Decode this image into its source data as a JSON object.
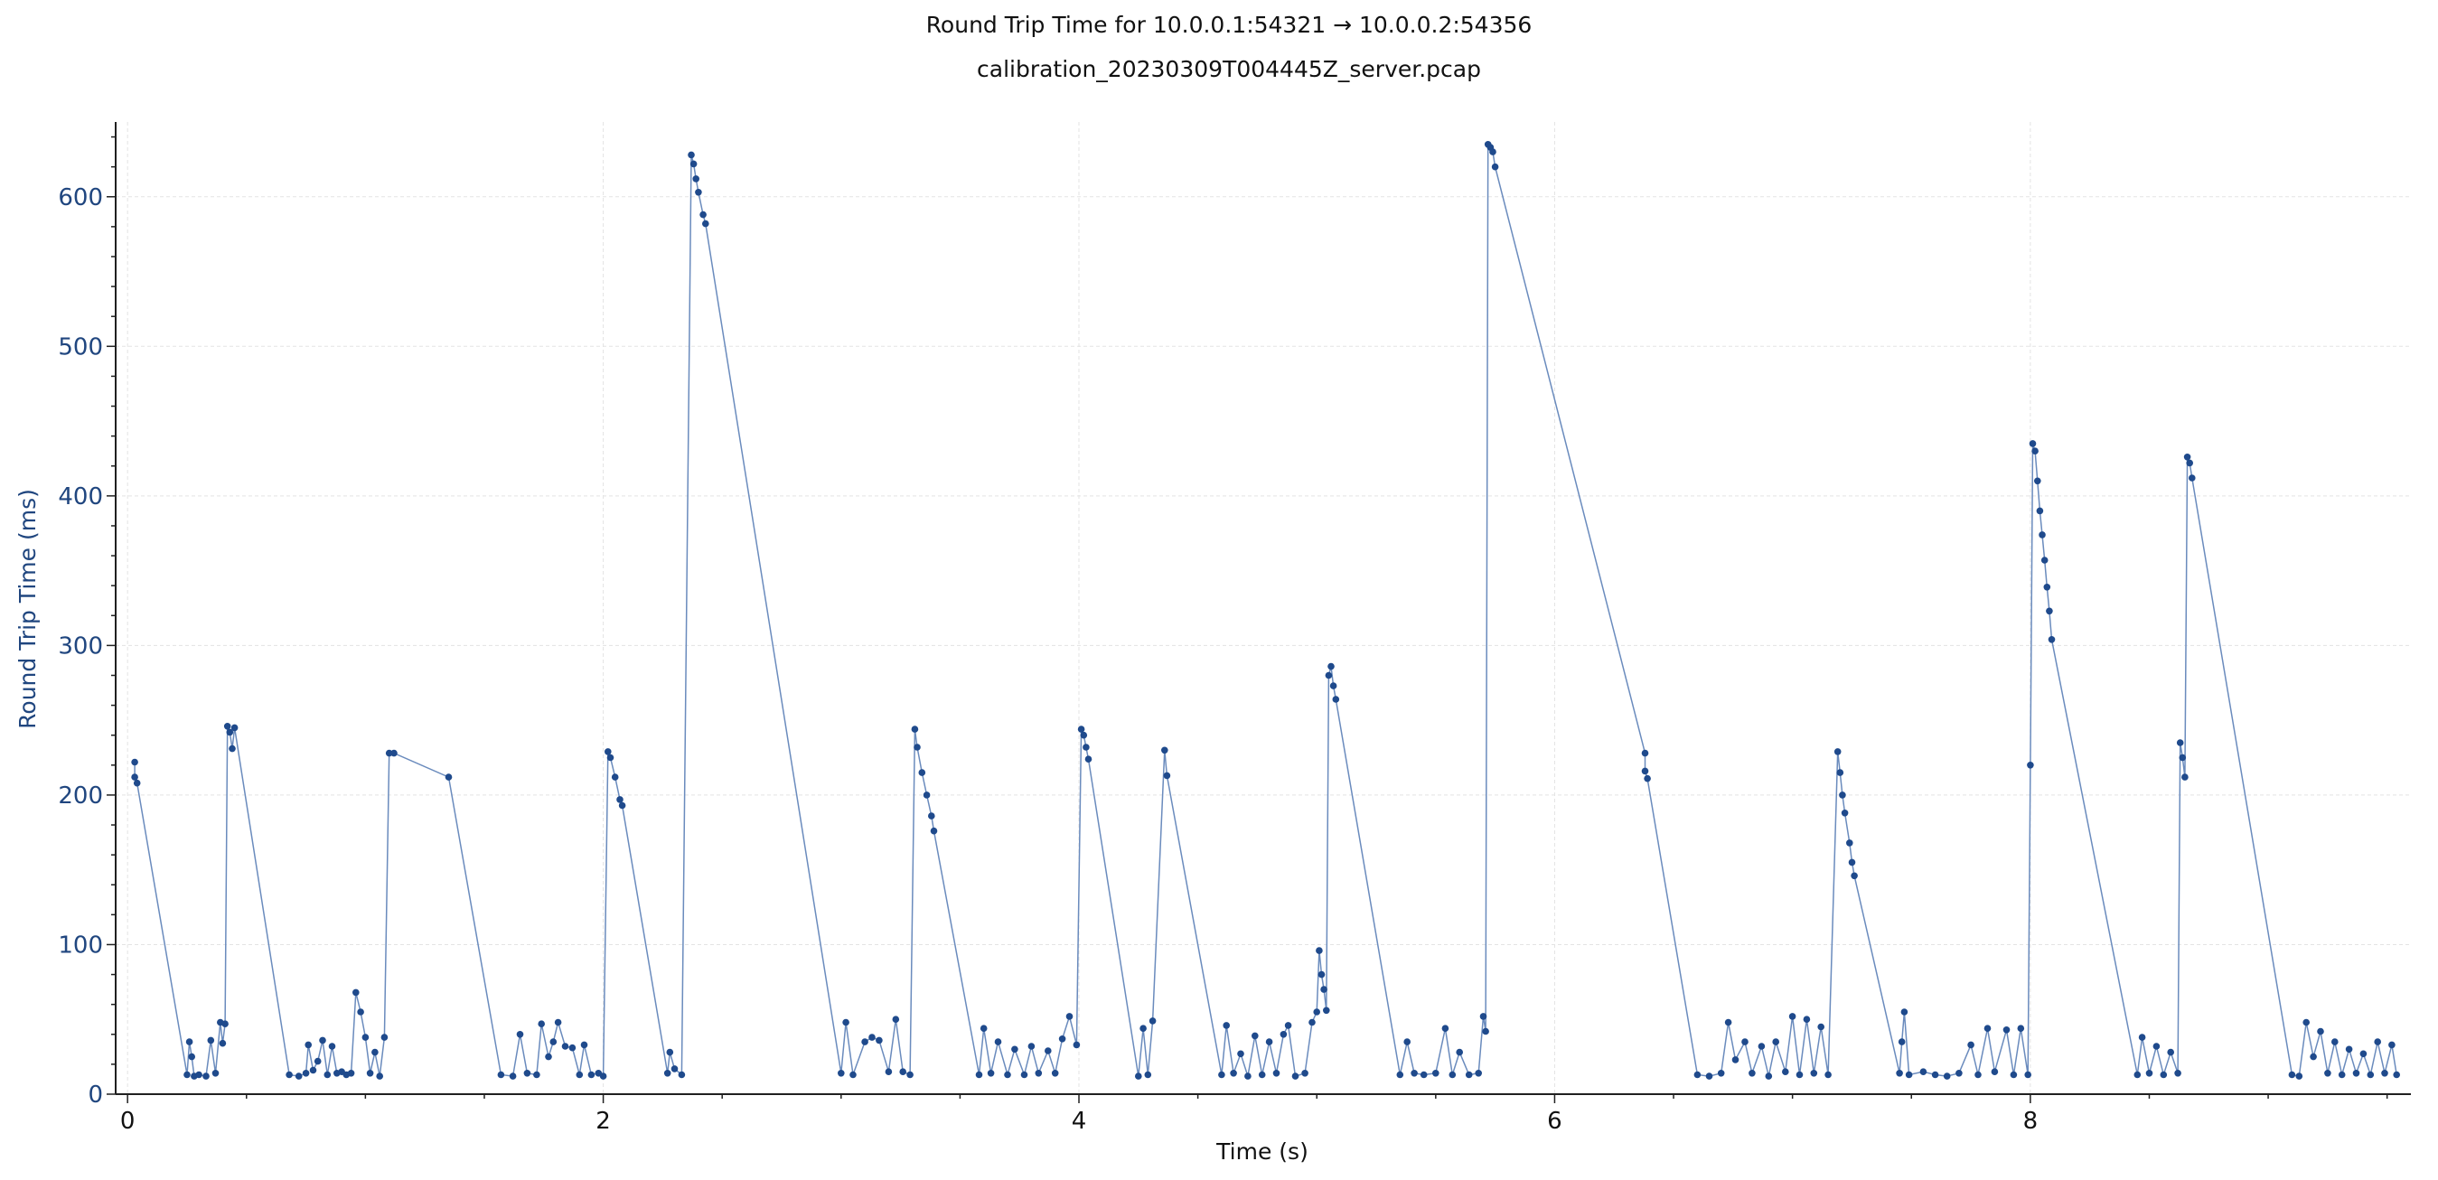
{
  "window": {
    "title": "Round Trip Time for 10.0.0.1:54321 → 10.0.0.2:54356",
    "subtitle": "calibration_20230309T004445Z_server.pcap"
  },
  "colors": {
    "series": "#1f4a8c",
    "line": "#6a8bbd",
    "grid": "#e3e3e3",
    "axis": "#202020",
    "ytick_text": "#20467f"
  },
  "chart_data": {
    "type": "scatter",
    "title": "Round Trip Time for 10.0.0.1:54321 → 10.0.0.2:54356",
    "subtitle": "calibration_20230309T004445Z_server.pcap",
    "xlabel": "Time (s)",
    "ylabel": "Round Trip Time (ms)",
    "xlim": [
      -0.05,
      9.6
    ],
    "ylim": [
      0,
      650
    ],
    "xticks": [
      0,
      2,
      4,
      6,
      8
    ],
    "yticks": [
      0,
      100,
      200,
      300,
      400,
      500,
      600
    ],
    "grid": true,
    "connected": true,
    "series": [
      {
        "points": [
          [
            0.03,
            222
          ],
          [
            0.03,
            212
          ],
          [
            0.04,
            208
          ],
          [
            0.25,
            13
          ],
          [
            0.26,
            35
          ],
          [
            0.27,
            25
          ],
          [
            0.28,
            12
          ],
          [
            0.3,
            13
          ],
          [
            0.33,
            12
          ],
          [
            0.35,
            36
          ],
          [
            0.37,
            14
          ],
          [
            0.39,
            48
          ],
          [
            0.4,
            34
          ],
          [
            0.41,
            47
          ],
          [
            0.42,
            246
          ],
          [
            0.43,
            242
          ],
          [
            0.44,
            231
          ],
          [
            0.45,
            245
          ],
          [
            0.68,
            13
          ],
          [
            0.72,
            12
          ],
          [
            0.75,
            14
          ],
          [
            0.76,
            33
          ],
          [
            0.78,
            16
          ],
          [
            0.8,
            22
          ],
          [
            0.82,
            36
          ],
          [
            0.84,
            13
          ],
          [
            0.86,
            32
          ],
          [
            0.88,
            14
          ],
          [
            0.9,
            15
          ],
          [
            0.92,
            13
          ],
          [
            0.94,
            14
          ],
          [
            0.96,
            68
          ],
          [
            0.98,
            55
          ],
          [
            1.0,
            38
          ],
          [
            1.02,
            14
          ],
          [
            1.04,
            28
          ],
          [
            1.06,
            12
          ],
          [
            1.08,
            38
          ],
          [
            1.1,
            228
          ],
          [
            1.12,
            228
          ],
          [
            1.35,
            212
          ],
          [
            1.57,
            13
          ],
          [
            1.62,
            12
          ],
          [
            1.65,
            40
          ],
          [
            1.68,
            14
          ],
          [
            1.72,
            13
          ],
          [
            1.74,
            47
          ],
          [
            1.77,
            25
          ],
          [
            1.79,
            35
          ],
          [
            1.81,
            48
          ],
          [
            1.84,
            32
          ],
          [
            1.87,
            31
          ],
          [
            1.9,
            13
          ],
          [
            1.92,
            33
          ],
          [
            1.95,
            13
          ],
          [
            1.98,
            14
          ],
          [
            2.0,
            12
          ],
          [
            2.02,
            229
          ],
          [
            2.03,
            225
          ],
          [
            2.05,
            212
          ],
          [
            2.07,
            197
          ],
          [
            2.08,
            193
          ],
          [
            2.27,
            14
          ],
          [
            2.28,
            28
          ],
          [
            2.3,
            17
          ],
          [
            2.33,
            13
          ],
          [
            2.37,
            628
          ],
          [
            2.38,
            622
          ],
          [
            2.39,
            612
          ],
          [
            2.4,
            603
          ],
          [
            2.42,
            588
          ],
          [
            2.43,
            582
          ],
          [
            3.0,
            14
          ],
          [
            3.02,
            48
          ],
          [
            3.05,
            13
          ],
          [
            3.1,
            35
          ],
          [
            3.13,
            38
          ],
          [
            3.16,
            36
          ],
          [
            3.2,
            15
          ],
          [
            3.23,
            50
          ],
          [
            3.26,
            15
          ],
          [
            3.29,
            13
          ],
          [
            3.31,
            244
          ],
          [
            3.32,
            232
          ],
          [
            3.34,
            215
          ],
          [
            3.36,
            200
          ],
          [
            3.38,
            186
          ],
          [
            3.39,
            176
          ],
          [
            3.58,
            13
          ],
          [
            3.6,
            44
          ],
          [
            3.63,
            14
          ],
          [
            3.66,
            35
          ],
          [
            3.7,
            13
          ],
          [
            3.73,
            30
          ],
          [
            3.77,
            13
          ],
          [
            3.8,
            32
          ],
          [
            3.83,
            14
          ],
          [
            3.87,
            29
          ],
          [
            3.9,
            14
          ],
          [
            3.93,
            37
          ],
          [
            3.96,
            52
          ],
          [
            3.99,
            33
          ],
          [
            4.01,
            244
          ],
          [
            4.02,
            240
          ],
          [
            4.03,
            232
          ],
          [
            4.04,
            224
          ],
          [
            4.25,
            12
          ],
          [
            4.27,
            44
          ],
          [
            4.29,
            13
          ],
          [
            4.31,
            49
          ],
          [
            4.36,
            230
          ],
          [
            4.37,
            213
          ],
          [
            4.6,
            13
          ],
          [
            4.62,
            46
          ],
          [
            4.65,
            14
          ],
          [
            4.68,
            27
          ],
          [
            4.71,
            12
          ],
          [
            4.74,
            39
          ],
          [
            4.77,
            13
          ],
          [
            4.8,
            35
          ],
          [
            4.83,
            14
          ],
          [
            4.86,
            40
          ],
          [
            4.88,
            46
          ],
          [
            4.91,
            12
          ],
          [
            4.95,
            14
          ],
          [
            4.98,
            48
          ],
          [
            5.0,
            55
          ],
          [
            5.01,
            96
          ],
          [
            5.02,
            80
          ],
          [
            5.03,
            70
          ],
          [
            5.04,
            56
          ],
          [
            5.05,
            280
          ],
          [
            5.06,
            286
          ],
          [
            5.07,
            273
          ],
          [
            5.08,
            264
          ],
          [
            5.35,
            13
          ],
          [
            5.38,
            35
          ],
          [
            5.41,
            14
          ],
          [
            5.45,
            13
          ],
          [
            5.5,
            14
          ],
          [
            5.54,
            44
          ],
          [
            5.57,
            13
          ],
          [
            5.6,
            28
          ],
          [
            5.64,
            13
          ],
          [
            5.68,
            14
          ],
          [
            5.7,
            52
          ],
          [
            5.71,
            42
          ],
          [
            5.72,
            635
          ],
          [
            5.73,
            633
          ],
          [
            5.74,
            630
          ],
          [
            5.75,
            620
          ],
          [
            6.38,
            228
          ],
          [
            6.38,
            216
          ],
          [
            6.39,
            211
          ],
          [
            6.6,
            13
          ],
          [
            6.65,
            12
          ],
          [
            6.7,
            14
          ],
          [
            6.73,
            48
          ],
          [
            6.76,
            23
          ],
          [
            6.8,
            35
          ],
          [
            6.83,
            14
          ],
          [
            6.87,
            32
          ],
          [
            6.9,
            12
          ],
          [
            6.93,
            35
          ],
          [
            6.97,
            15
          ],
          [
            7.0,
            52
          ],
          [
            7.03,
            13
          ],
          [
            7.06,
            50
          ],
          [
            7.09,
            14
          ],
          [
            7.12,
            45
          ],
          [
            7.15,
            13
          ],
          [
            7.19,
            229
          ],
          [
            7.2,
            215
          ],
          [
            7.21,
            200
          ],
          [
            7.22,
            188
          ],
          [
            7.24,
            168
          ],
          [
            7.25,
            155
          ],
          [
            7.26,
            146
          ],
          [
            7.45,
            14
          ],
          [
            7.46,
            35
          ],
          [
            7.47,
            55
          ],
          [
            7.49,
            13
          ],
          [
            7.55,
            15
          ],
          [
            7.6,
            13
          ],
          [
            7.65,
            12
          ],
          [
            7.7,
            14
          ],
          [
            7.75,
            33
          ],
          [
            7.78,
            13
          ],
          [
            7.82,
            44
          ],
          [
            7.85,
            15
          ],
          [
            7.9,
            43
          ],
          [
            7.93,
            13
          ],
          [
            7.96,
            44
          ],
          [
            7.99,
            13
          ],
          [
            8.0,
            220
          ],
          [
            8.01,
            435
          ],
          [
            8.02,
            430
          ],
          [
            8.03,
            410
          ],
          [
            8.04,
            390
          ],
          [
            8.05,
            374
          ],
          [
            8.06,
            357
          ],
          [
            8.07,
            339
          ],
          [
            8.08,
            323
          ],
          [
            8.09,
            304
          ],
          [
            8.45,
            13
          ],
          [
            8.47,
            38
          ],
          [
            8.5,
            14
          ],
          [
            8.53,
            32
          ],
          [
            8.56,
            13
          ],
          [
            8.59,
            28
          ],
          [
            8.62,
            14
          ],
          [
            8.63,
            235
          ],
          [
            8.64,
            225
          ],
          [
            8.65,
            212
          ],
          [
            8.66,
            426
          ],
          [
            8.67,
            422
          ],
          [
            8.68,
            412
          ],
          [
            9.1,
            13
          ],
          [
            9.13,
            12
          ],
          [
            9.16,
            48
          ],
          [
            9.19,
            25
          ],
          [
            9.22,
            42
          ],
          [
            9.25,
            14
          ],
          [
            9.28,
            35
          ],
          [
            9.31,
            13
          ],
          [
            9.34,
            30
          ],
          [
            9.37,
            14
          ],
          [
            9.4,
            27
          ],
          [
            9.43,
            13
          ],
          [
            9.46,
            35
          ],
          [
            9.49,
            14
          ],
          [
            9.52,
            33
          ],
          [
            9.54,
            13
          ]
        ]
      }
    ]
  }
}
